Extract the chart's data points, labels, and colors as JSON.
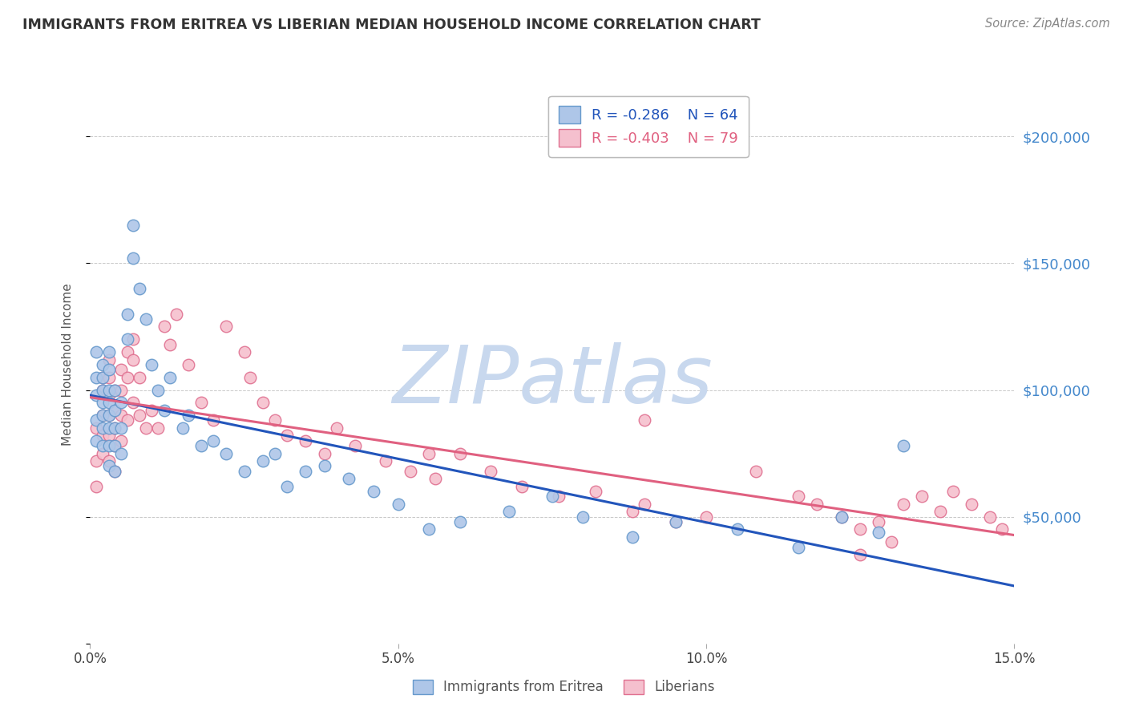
{
  "title": "IMMIGRANTS FROM ERITREA VS LIBERIAN MEDIAN HOUSEHOLD INCOME CORRELATION CHART",
  "source_text": "Source: ZipAtlas.com",
  "ylabel": "Median Household Income",
  "xlim": [
    0.0,
    0.15
  ],
  "ylim": [
    0,
    220000
  ],
  "xtick_labels": [
    "0.0%",
    "5.0%",
    "10.0%",
    "15.0%"
  ],
  "xtick_values": [
    0.0,
    0.05,
    0.1,
    0.15
  ],
  "ytick_values": [
    0,
    50000,
    100000,
    150000,
    200000
  ],
  "right_ytick_labels": [
    "$50,000",
    "$100,000",
    "$150,000",
    "$200,000"
  ],
  "right_ytick_values": [
    50000,
    100000,
    150000,
    200000
  ],
  "series1_color": "#aec6e8",
  "series1_edge_color": "#6699cc",
  "series1_label": "Immigrants from Eritrea",
  "series1_R": "-0.286",
  "series1_N": "64",
  "series1_line_color": "#2255bb",
  "series2_color": "#f5c0ce",
  "series2_edge_color": "#e07090",
  "series2_label": "Liberians",
  "series2_R": "-0.403",
  "series2_N": "79",
  "series2_line_color": "#e06080",
  "watermark_text": "ZIPatlas",
  "watermark_color": "#c8d8ee",
  "background_color": "#ffffff",
  "grid_color": "#bbbbbb",
  "title_color": "#333333",
  "axis_label_color": "#555555",
  "right_axis_color": "#4488cc",
  "series1_x": [
    0.001,
    0.001,
    0.001,
    0.001,
    0.001,
    0.002,
    0.002,
    0.002,
    0.002,
    0.002,
    0.002,
    0.002,
    0.003,
    0.003,
    0.003,
    0.003,
    0.003,
    0.003,
    0.003,
    0.003,
    0.004,
    0.004,
    0.004,
    0.004,
    0.004,
    0.005,
    0.005,
    0.005,
    0.006,
    0.006,
    0.007,
    0.007,
    0.008,
    0.009,
    0.01,
    0.011,
    0.012,
    0.013,
    0.015,
    0.016,
    0.018,
    0.02,
    0.022,
    0.025,
    0.028,
    0.03,
    0.032,
    0.035,
    0.038,
    0.042,
    0.046,
    0.05,
    0.055,
    0.06,
    0.068,
    0.075,
    0.08,
    0.088,
    0.095,
    0.105,
    0.115,
    0.122,
    0.128,
    0.132
  ],
  "series1_y": [
    115000,
    105000,
    98000,
    88000,
    80000,
    110000,
    105000,
    100000,
    95000,
    90000,
    85000,
    78000,
    115000,
    108000,
    100000,
    95000,
    90000,
    85000,
    78000,
    70000,
    100000,
    92000,
    85000,
    78000,
    68000,
    95000,
    85000,
    75000,
    130000,
    120000,
    165000,
    152000,
    140000,
    128000,
    110000,
    100000,
    92000,
    105000,
    85000,
    90000,
    78000,
    80000,
    75000,
    68000,
    72000,
    75000,
    62000,
    68000,
    70000,
    65000,
    60000,
    55000,
    45000,
    48000,
    52000,
    58000,
    50000,
    42000,
    48000,
    45000,
    38000,
    50000,
    44000,
    78000
  ],
  "series2_x": [
    0.001,
    0.001,
    0.001,
    0.002,
    0.002,
    0.002,
    0.002,
    0.002,
    0.003,
    0.003,
    0.003,
    0.003,
    0.003,
    0.003,
    0.004,
    0.004,
    0.004,
    0.004,
    0.004,
    0.005,
    0.005,
    0.005,
    0.005,
    0.006,
    0.006,
    0.006,
    0.007,
    0.007,
    0.007,
    0.008,
    0.008,
    0.009,
    0.01,
    0.011,
    0.012,
    0.013,
    0.014,
    0.016,
    0.018,
    0.02,
    0.022,
    0.025,
    0.026,
    0.028,
    0.03,
    0.032,
    0.035,
    0.038,
    0.04,
    0.043,
    0.048,
    0.052,
    0.056,
    0.06,
    0.065,
    0.07,
    0.076,
    0.082,
    0.088,
    0.09,
    0.095,
    0.1,
    0.108,
    0.115,
    0.118,
    0.122,
    0.125,
    0.128,
    0.132,
    0.135,
    0.138,
    0.14,
    0.143,
    0.146,
    0.148,
    0.13,
    0.125,
    0.09,
    0.055
  ],
  "series2_y": [
    85000,
    72000,
    62000,
    105000,
    100000,
    90000,
    82000,
    75000,
    112000,
    105000,
    98000,
    90000,
    82000,
    72000,
    100000,
    92000,
    85000,
    78000,
    68000,
    108000,
    100000,
    90000,
    80000,
    115000,
    105000,
    88000,
    120000,
    112000,
    95000,
    105000,
    90000,
    85000,
    92000,
    85000,
    125000,
    118000,
    130000,
    110000,
    95000,
    88000,
    125000,
    115000,
    105000,
    95000,
    88000,
    82000,
    80000,
    75000,
    85000,
    78000,
    72000,
    68000,
    65000,
    75000,
    68000,
    62000,
    58000,
    60000,
    52000,
    55000,
    48000,
    50000,
    68000,
    58000,
    55000,
    50000,
    45000,
    48000,
    55000,
    58000,
    52000,
    60000,
    55000,
    50000,
    45000,
    40000,
    35000,
    88000,
    75000
  ]
}
